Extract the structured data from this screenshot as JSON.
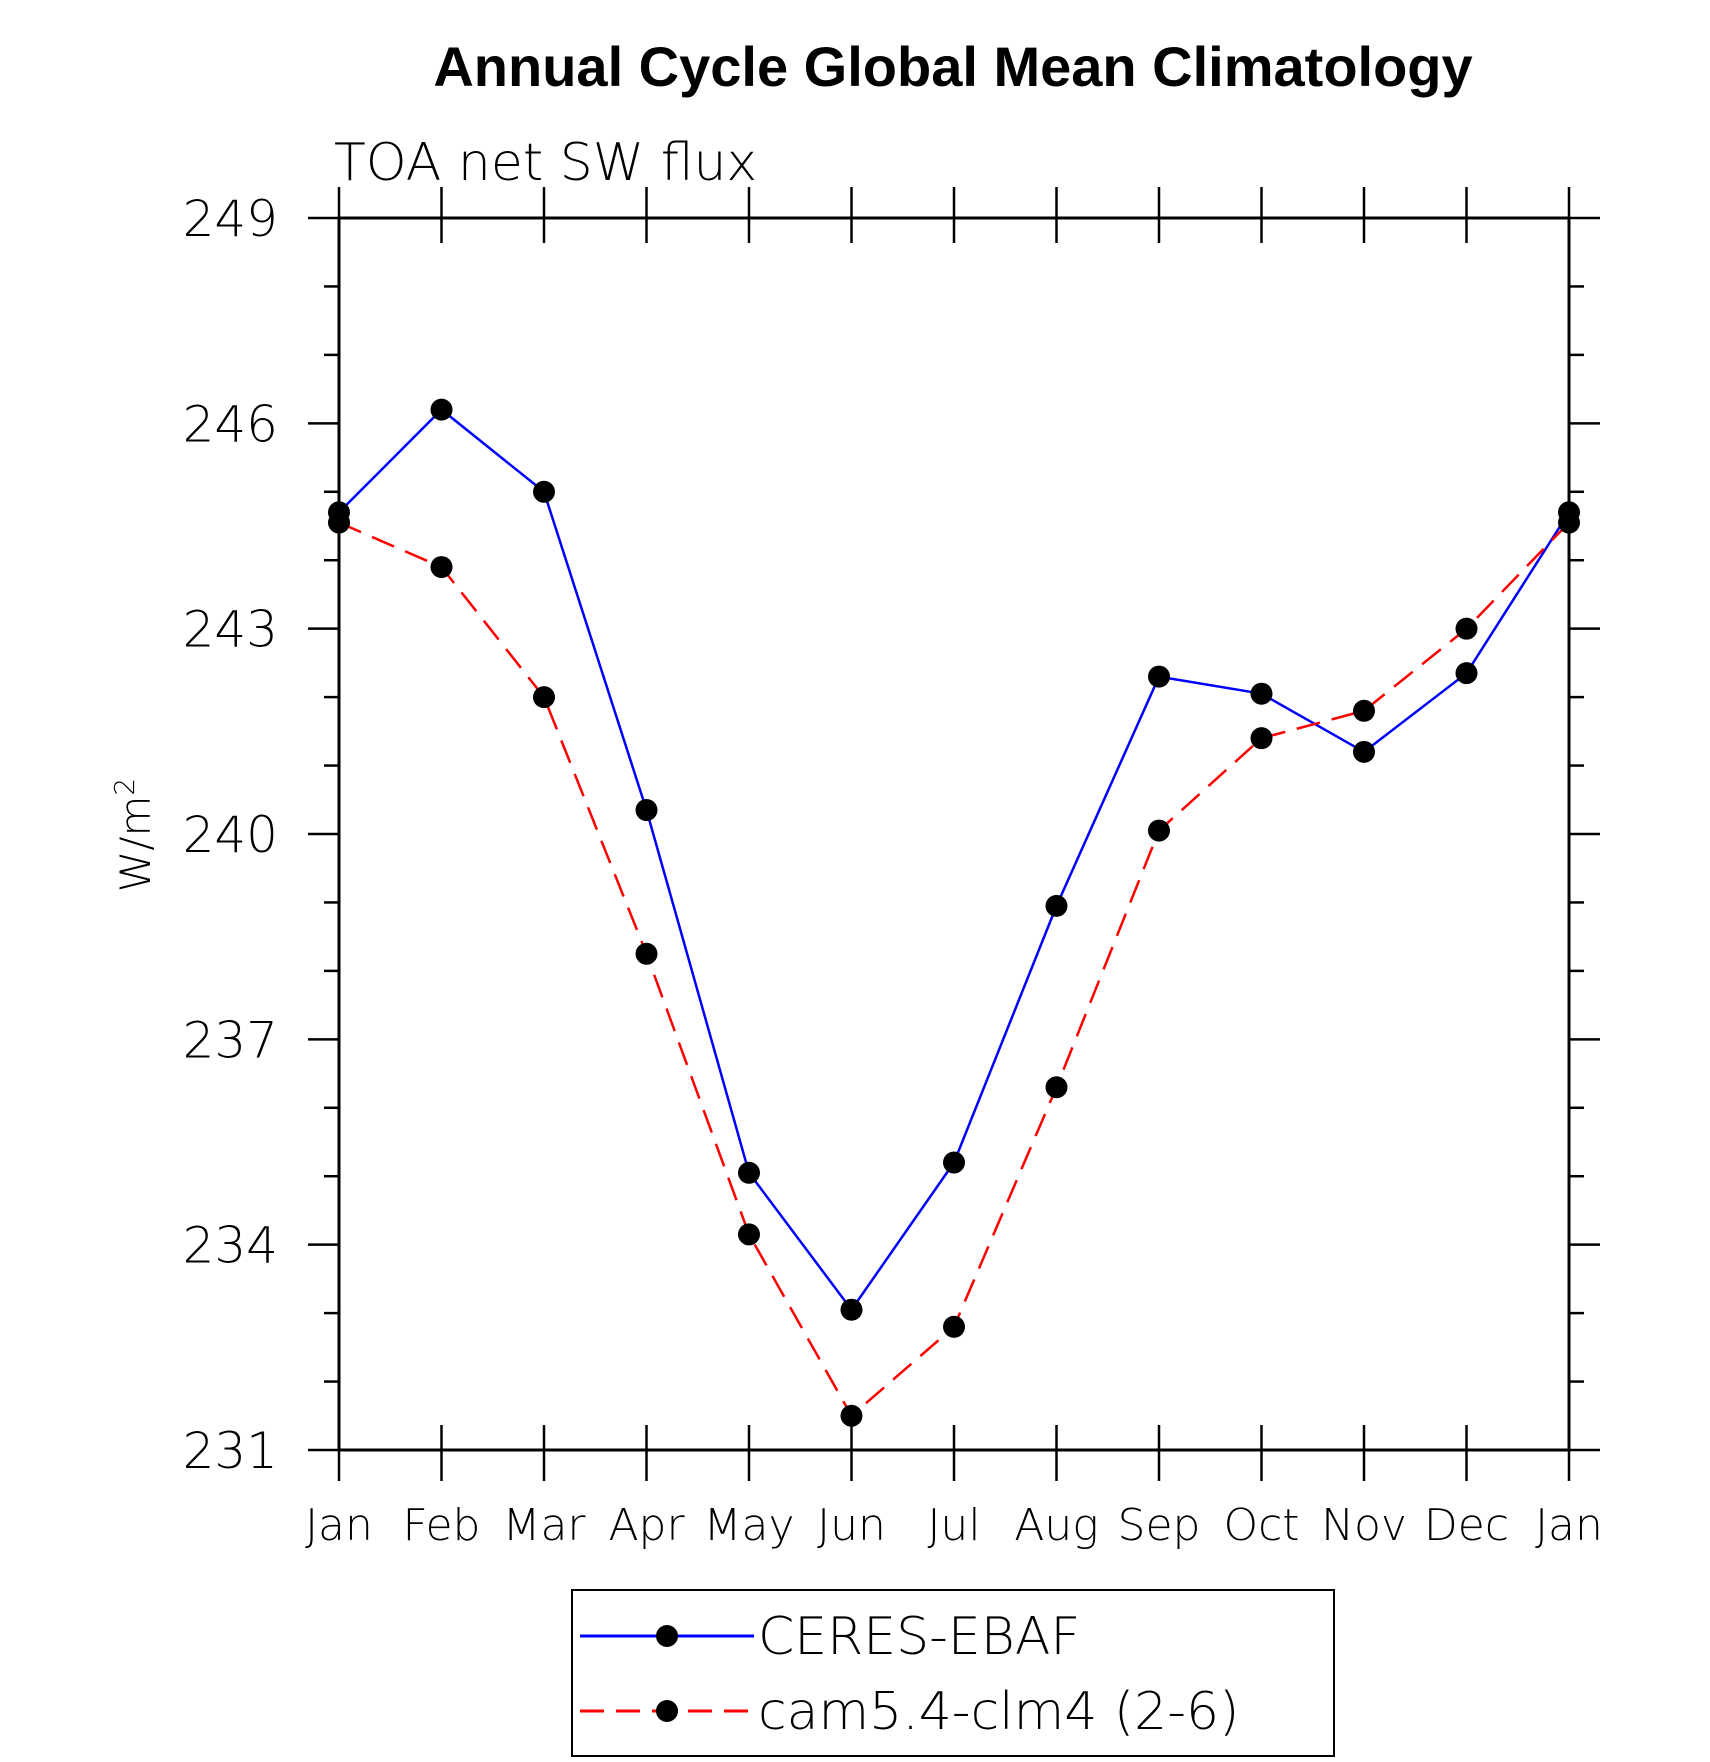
{
  "chart_data": {
    "type": "line",
    "title": "Annual Cycle Global Mean Climatology",
    "subtitle": "TOA net SW flux",
    "ylabel": "W/m",
    "ylabel_superscript": "2",
    "xlabel": "",
    "categories": [
      "Jan",
      "Feb",
      "Mar",
      "Apr",
      "May",
      "Jun",
      "Jul",
      "Aug",
      "Sep",
      "Oct",
      "Nov",
      "Dec",
      "Jan"
    ],
    "yticks": [
      231,
      234,
      237,
      240,
      243,
      246,
      249
    ],
    "ylim": [
      231,
      249
    ],
    "grid": false,
    "legend_position": "bottom-center",
    "series": [
      {
        "name": "CERES-EBAF",
        "color": "#0000ff",
        "line_style": "solid",
        "marker": "filled-circle",
        "values": [
          244.7,
          246.2,
          245.0,
          240.35,
          235.05,
          233.05,
          235.2,
          238.95,
          242.3,
          242.05,
          241.2,
          242.35,
          244.7
        ]
      },
      {
        "name": "cam5.4-clm4 (2-6)",
        "color": "#ff0000",
        "line_style": "dashed",
        "marker": "filled-circle",
        "values": [
          244.55,
          243.9,
          242.0,
          238.25,
          234.15,
          231.5,
          232.8,
          236.3,
          240.05,
          241.4,
          241.8,
          243.0,
          244.55
        ]
      }
    ]
  }
}
